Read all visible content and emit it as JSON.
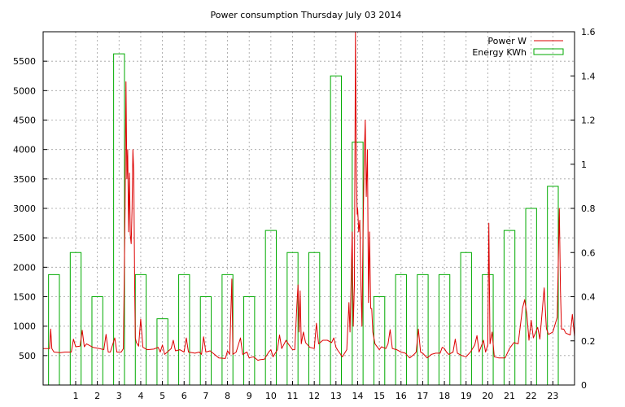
{
  "chart_data": {
    "type": "bar+line",
    "title": "Power consumption Thursday July 03 2014",
    "legend_position": "top-right",
    "grid": true,
    "x": {
      "range": [
        -0.5,
        24.0
      ],
      "ticks": [
        "1",
        "2",
        "3",
        "4",
        "5",
        "6",
        "7",
        "8",
        "9",
        "10",
        "11",
        "12",
        "13",
        "14",
        "15",
        "16",
        "17",
        "18",
        "19",
        "20",
        "21",
        "22",
        "23"
      ]
    },
    "y_left": {
      "range": [
        0,
        6000
      ],
      "ticks": [
        "500",
        "1000",
        "1500",
        "2000",
        "2500",
        "3000",
        "3500",
        "4000",
        "4500",
        "5000",
        "5500"
      ]
    },
    "y_right": {
      "range": [
        0,
        1.6
      ],
      "ticks": [
        "0",
        "0.2",
        "0.4",
        "0.6",
        "0.8",
        "1",
        "1.2",
        "1.4",
        "1.6"
      ]
    },
    "series": [
      {
        "name": "Power W",
        "color": "#dd0000",
        "axis": "left",
        "points": [
          [
            -0.5,
            620
          ],
          [
            -0.2,
            620
          ],
          [
            -0.15,
            950
          ],
          [
            -0.1,
            620
          ],
          [
            0.0,
            560
          ],
          [
            0.3,
            550
          ],
          [
            0.5,
            560
          ],
          [
            0.8,
            560
          ],
          [
            0.9,
            780
          ],
          [
            1.0,
            650
          ],
          [
            1.2,
            660
          ],
          [
            1.3,
            930
          ],
          [
            1.4,
            650
          ],
          [
            1.5,
            700
          ],
          [
            1.8,
            640
          ],
          [
            2.1,
            620
          ],
          [
            2.3,
            600
          ],
          [
            2.4,
            860
          ],
          [
            2.5,
            560
          ],
          [
            2.6,
            560
          ],
          [
            2.8,
            800
          ],
          [
            2.9,
            560
          ],
          [
            3.1,
            560
          ],
          [
            3.2,
            620
          ],
          [
            3.28,
            3000
          ],
          [
            3.32,
            5150
          ],
          [
            3.36,
            3500
          ],
          [
            3.4,
            4000
          ],
          [
            3.44,
            2600
          ],
          [
            3.48,
            3600
          ],
          [
            3.52,
            2550
          ],
          [
            3.56,
            2400
          ],
          [
            3.6,
            3000
          ],
          [
            3.64,
            4000
          ],
          [
            3.68,
            3600
          ],
          [
            3.72,
            1650
          ],
          [
            3.75,
            800
          ],
          [
            3.8,
            720
          ],
          [
            3.9,
            660
          ],
          [
            4.0,
            1120
          ],
          [
            4.1,
            640
          ],
          [
            4.3,
            600
          ],
          [
            4.6,
            610
          ],
          [
            4.8,
            640
          ],
          [
            4.9,
            560
          ],
          [
            5.0,
            680
          ],
          [
            5.1,
            520
          ],
          [
            5.4,
            620
          ],
          [
            5.5,
            760
          ],
          [
            5.6,
            580
          ],
          [
            5.8,
            600
          ],
          [
            6.0,
            560
          ],
          [
            6.1,
            800
          ],
          [
            6.2,
            560
          ],
          [
            6.5,
            540
          ],
          [
            6.7,
            560
          ],
          [
            6.8,
            520
          ],
          [
            6.9,
            820
          ],
          [
            7.0,
            560
          ],
          [
            7.2,
            580
          ],
          [
            7.4,
            520
          ],
          [
            7.6,
            460
          ],
          [
            7.9,
            450
          ],
          [
            8.0,
            580
          ],
          [
            8.1,
            520
          ],
          [
            8.2,
            1800
          ],
          [
            8.25,
            520
          ],
          [
            8.4,
            560
          ],
          [
            8.6,
            800
          ],
          [
            8.7,
            520
          ],
          [
            8.9,
            560
          ],
          [
            9.0,
            460
          ],
          [
            9.2,
            480
          ],
          [
            9.4,
            420
          ],
          [
            9.5,
            430
          ],
          [
            9.7,
            440
          ],
          [
            9.9,
            560
          ],
          [
            10.0,
            600
          ],
          [
            10.1,
            480
          ],
          [
            10.3,
            600
          ],
          [
            10.4,
            850
          ],
          [
            10.5,
            620
          ],
          [
            10.7,
            760
          ],
          [
            10.8,
            700
          ],
          [
            11.0,
            600
          ],
          [
            11.1,
            600
          ],
          [
            11.2,
            1350
          ],
          [
            11.25,
            1700
          ],
          [
            11.3,
            900
          ],
          [
            11.35,
            1600
          ],
          [
            11.4,
            700
          ],
          [
            11.5,
            900
          ],
          [
            11.6,
            720
          ],
          [
            11.8,
            640
          ],
          [
            12.0,
            620
          ],
          [
            12.1,
            1050
          ],
          [
            12.2,
            700
          ],
          [
            12.4,
            760
          ],
          [
            12.6,
            760
          ],
          [
            12.8,
            720
          ],
          [
            12.9,
            800
          ],
          [
            13.0,
            640
          ],
          [
            13.1,
            580
          ],
          [
            13.3,
            480
          ],
          [
            13.5,
            600
          ],
          [
            13.6,
            1400
          ],
          [
            13.65,
            900
          ],
          [
            13.7,
            1800
          ],
          [
            13.75,
            2600
          ],
          [
            13.8,
            1000
          ],
          [
            13.85,
            1700
          ],
          [
            13.9,
            6000
          ],
          [
            13.94,
            3600
          ],
          [
            13.98,
            2900
          ],
          [
            14.0,
            3000
          ],
          [
            14.05,
            2600
          ],
          [
            14.1,
            2800
          ],
          [
            14.15,
            1700
          ],
          [
            14.2,
            1000
          ],
          [
            14.25,
            2600
          ],
          [
            14.3,
            3800
          ],
          [
            14.35,
            4500
          ],
          [
            14.4,
            3200
          ],
          [
            14.45,
            4000
          ],
          [
            14.5,
            1400
          ],
          [
            14.55,
            2600
          ],
          [
            14.6,
            1300
          ],
          [
            14.65,
            1300
          ],
          [
            14.7,
            900
          ],
          [
            14.8,
            700
          ],
          [
            15.0,
            600
          ],
          [
            15.1,
            650
          ],
          [
            15.3,
            620
          ],
          [
            15.4,
            700
          ],
          [
            15.5,
            940
          ],
          [
            15.6,
            620
          ],
          [
            15.8,
            600
          ],
          [
            16.0,
            560
          ],
          [
            16.2,
            540
          ],
          [
            16.4,
            460
          ],
          [
            16.6,
            520
          ],
          [
            16.7,
            560
          ],
          [
            16.8,
            950
          ],
          [
            16.9,
            560
          ],
          [
            17.0,
            540
          ],
          [
            17.2,
            460
          ],
          [
            17.4,
            520
          ],
          [
            17.6,
            540
          ],
          [
            17.8,
            540
          ],
          [
            17.9,
            640
          ],
          [
            18.0,
            620
          ],
          [
            18.1,
            560
          ],
          [
            18.2,
            520
          ],
          [
            18.4,
            560
          ],
          [
            18.5,
            780
          ],
          [
            18.6,
            540
          ],
          [
            18.8,
            500
          ],
          [
            19.0,
            480
          ],
          [
            19.2,
            560
          ],
          [
            19.4,
            680
          ],
          [
            19.5,
            840
          ],
          [
            19.6,
            560
          ],
          [
            19.8,
            760
          ],
          [
            19.9,
            560
          ],
          [
            20.0,
            680
          ],
          [
            20.05,
            2750
          ],
          [
            20.1,
            700
          ],
          [
            20.2,
            900
          ],
          [
            20.3,
            480
          ],
          [
            20.5,
            460
          ],
          [
            20.8,
            460
          ],
          [
            21.0,
            620
          ],
          [
            21.2,
            720
          ],
          [
            21.4,
            700
          ],
          [
            21.6,
            1300
          ],
          [
            21.7,
            1450
          ],
          [
            21.8,
            1200
          ],
          [
            21.9,
            760
          ],
          [
            22.0,
            1100
          ],
          [
            22.1,
            800
          ],
          [
            22.3,
            980
          ],
          [
            22.4,
            780
          ],
          [
            22.6,
            1650
          ],
          [
            22.7,
            960
          ],
          [
            22.8,
            860
          ],
          [
            23.0,
            900
          ],
          [
            23.2,
            1150
          ],
          [
            23.3,
            3000
          ],
          [
            23.35,
            1600
          ],
          [
            23.4,
            950
          ],
          [
            23.5,
            950
          ],
          [
            23.6,
            880
          ],
          [
            23.8,
            850
          ],
          [
            23.9,
            1200
          ],
          [
            24.0,
            820
          ]
        ]
      },
      {
        "name": "Energy KWh",
        "color": "#00aa00",
        "axis": "right",
        "bars": [
          {
            "x": 0,
            "value": 0.5
          },
          {
            "x": 1,
            "value": 0.6
          },
          {
            "x": 2,
            "value": 0.4
          },
          {
            "x": 3,
            "value": 1.5
          },
          {
            "x": 4,
            "value": 0.5
          },
          {
            "x": 5,
            "value": 0.3
          },
          {
            "x": 6,
            "value": 0.5
          },
          {
            "x": 7,
            "value": 0.4
          },
          {
            "x": 8,
            "value": 0.5
          },
          {
            "x": 9,
            "value": 0.4
          },
          {
            "x": 10,
            "value": 0.7
          },
          {
            "x": 11,
            "value": 0.6
          },
          {
            "x": 12,
            "value": 0.6
          },
          {
            "x": 13,
            "value": 1.4
          },
          {
            "x": 14,
            "value": 1.1
          },
          {
            "x": 15,
            "value": 0.4
          },
          {
            "x": 16,
            "value": 0.5
          },
          {
            "x": 17,
            "value": 0.5
          },
          {
            "x": 18,
            "value": 0.5
          },
          {
            "x": 19,
            "value": 0.6
          },
          {
            "x": 20,
            "value": 0.5
          },
          {
            "x": 21,
            "value": 0.7
          },
          {
            "x": 22,
            "value": 0.8
          },
          {
            "x": 23,
            "value": 0.9
          }
        ]
      }
    ]
  }
}
